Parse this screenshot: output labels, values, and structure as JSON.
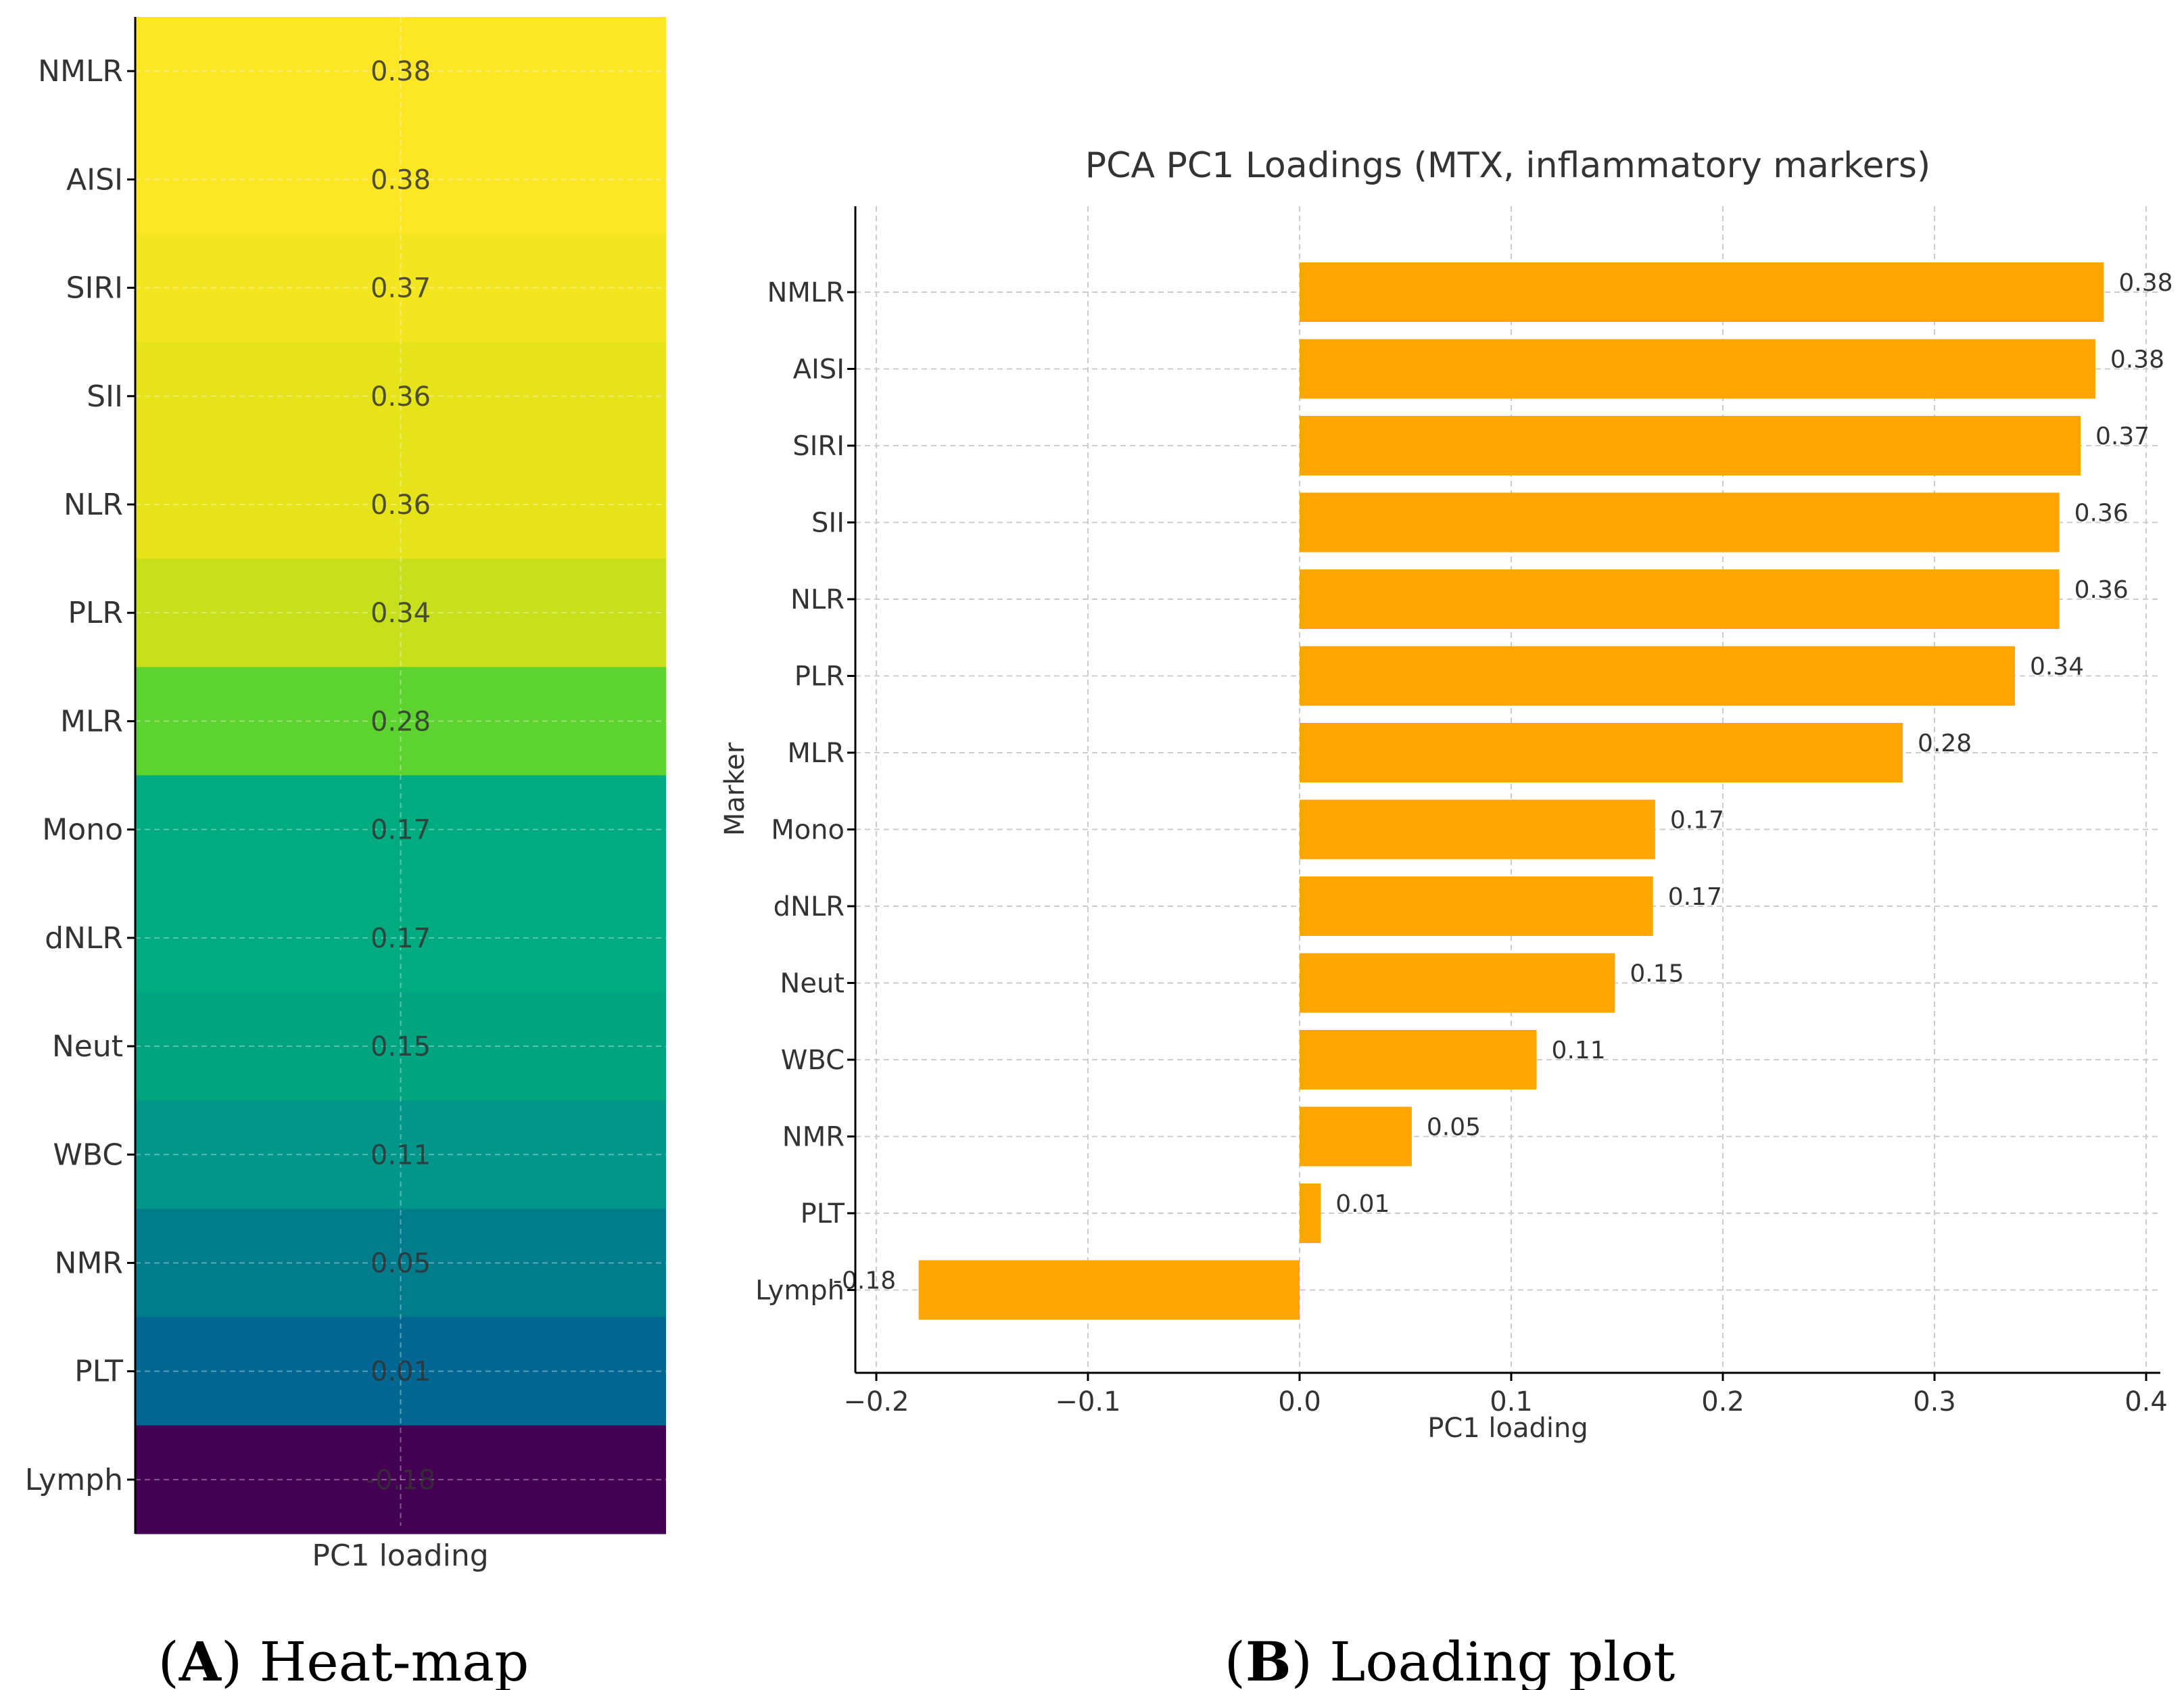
{
  "chart_data": [
    {
      "type": "heatmap",
      "name": "Heat-map",
      "categories": [
        "NMLR",
        "AISI",
        "SIRI",
        "SII",
        "NLR",
        "PLR",
        "MLR",
        "Mono",
        "dNLR",
        "Neut",
        "WBC",
        "NMR",
        "PLT",
        "Lymph"
      ],
      "values": [
        0.38,
        0.38,
        0.37,
        0.36,
        0.36,
        0.34,
        0.28,
        0.17,
        0.17,
        0.15,
        0.11,
        0.05,
        0.01,
        -0.18
      ],
      "labels": [
        "0.38",
        "0.38",
        "0.37",
        "0.36",
        "0.36",
        "0.34",
        "0.28",
        "0.17",
        "0.17",
        "0.15",
        "0.11",
        "0.05",
        "0.01",
        "-0.18"
      ],
      "colors": [
        "#fde725",
        "#fde725",
        "#f4e61e",
        "#e6e419",
        "#e6e419",
        "#c6e01c",
        "#5cd32e",
        "#00ab80",
        "#00ab80",
        "#00a481",
        "#00968a",
        "#007c8c",
        "#006792",
        "#440154"
      ],
      "xlabel": "PC1 loading",
      "caption": {
        "letter": "A",
        "text": " Heat-map"
      }
    },
    {
      "type": "bar",
      "orientation": "horizontal",
      "title": "PCA PC1 Loadings (MTX, inflammatory markers)",
      "categories": [
        "NMLR",
        "AISI",
        "SIRI",
        "SII",
        "NLR",
        "PLR",
        "MLR",
        "Mono",
        "dNLR",
        "Neut",
        "WBC",
        "NMR",
        "PLT",
        "Lymph"
      ],
      "values": [
        0.38,
        0.376,
        0.369,
        0.359,
        0.359,
        0.338,
        0.285,
        0.168,
        0.167,
        0.149,
        0.112,
        0.053,
        0.01,
        -0.18
      ],
      "labels": [
        "0.38",
        "0.38",
        "0.37",
        "0.36",
        "0.36",
        "0.34",
        "0.28",
        "0.17",
        "0.17",
        "0.15",
        "0.11",
        "0.05",
        "0.01",
        "-0.18"
      ],
      "xlim": [
        -0.21,
        0.41
      ],
      "xticks": [
        -0.2,
        -0.1,
        0.0,
        0.1,
        0.2,
        0.3,
        0.4
      ],
      "xtick_labels": [
        "−0.2",
        "−0.1",
        "0.0",
        "0.1",
        "0.2",
        "0.3",
        "0.4"
      ],
      "xlabel": "PC1 loading",
      "ylabel": "Marker",
      "grid": true,
      "bar_color": "#ffa500",
      "caption": {
        "letter": "B",
        "text": " Loading plot"
      }
    }
  ]
}
